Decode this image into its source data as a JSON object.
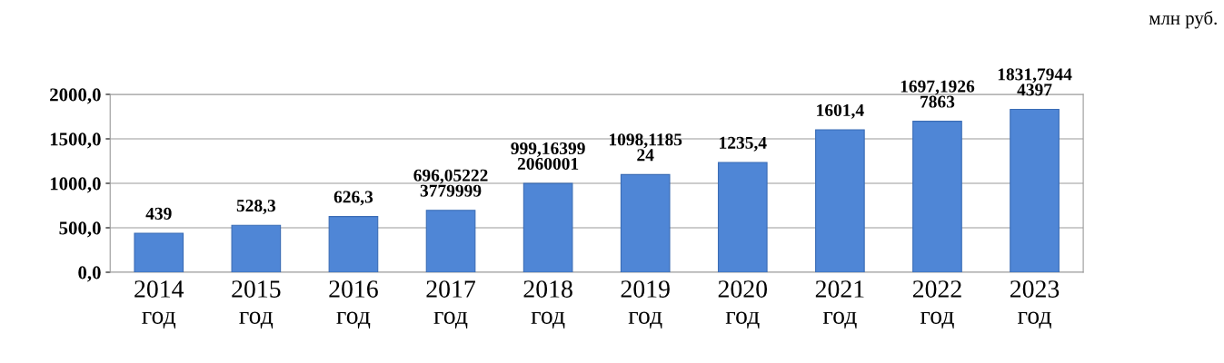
{
  "chart_data": {
    "type": "bar",
    "categories": [
      "2014\nгод",
      "2015\nгод",
      "2016\nгод",
      "2017\nгод",
      "2018\nгод",
      "2019\nгод",
      "2020\nгод",
      "2021\nгод",
      "2022\nгод",
      "2023\nгод"
    ],
    "values": [
      439,
      528.3,
      626.3,
      696.05,
      999.16,
      1098.12,
      1235.4,
      1601.4,
      1697.19,
      1831.79
    ],
    "value_labels": [
      "439",
      "528,3",
      "626,3",
      "696,05222\n3779999",
      "999,16399\n2060001",
      "1098,1185\n24",
      "1235,4",
      "1601,4",
      "1697,1926\n7863",
      "1831,7944\n4397"
    ],
    "color": "#4f86d6",
    "ylim": [
      0,
      2000
    ],
    "yticks": [
      {
        "value": 0,
        "label": "0,0"
      },
      {
        "value": 500,
        "label": "500,0"
      },
      {
        "value": 1000,
        "label": "1000,0"
      },
      {
        "value": 1500,
        "label": "1500,0"
      },
      {
        "value": 2000,
        "label": "2000,0"
      }
    ],
    "grid": "y",
    "annotations": [
      "млн руб."
    ]
  }
}
